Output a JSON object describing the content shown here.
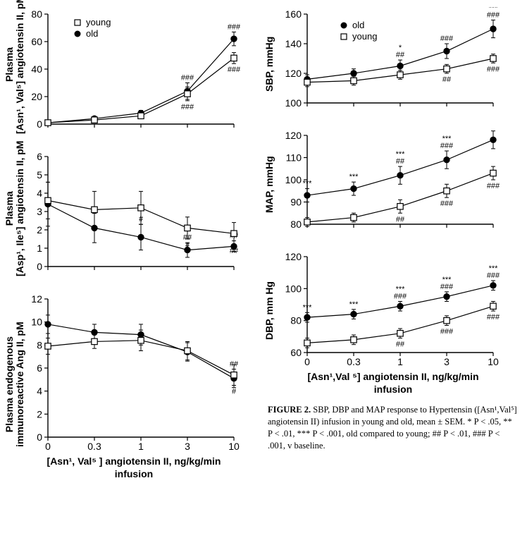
{
  "colors": {
    "bg": "#ffffff",
    "ink": "#000000",
    "series_old_fill": "#000000",
    "series_young_fill": "#ffffff",
    "series_stroke": "#000000",
    "axis": "#000000"
  },
  "marker": {
    "old": "circle-filled",
    "young": "square-open",
    "size": 4.2
  },
  "line_width": 1.2,
  "legend": {
    "left_panel": [
      {
        "key": "young",
        "label": "young"
      },
      {
        "key": "old",
        "label": "old"
      }
    ],
    "right_panel": [
      {
        "key": "old",
        "label": "old"
      },
      {
        "key": "young",
        "label": "young"
      }
    ]
  },
  "xlabels": {
    "left": "[Asn¹, Val⁵ ] angiotensin II, ng/kg/min\ninfusion",
    "right": "[Asn¹,Val ⁵] angiotensin II, ng/kg/min\ninfusion"
  },
  "xticks": [
    "0",
    "0.3",
    "1",
    "3",
    "10"
  ],
  "left_panels": [
    {
      "id": "L1",
      "ylabel_line1": "Plasma",
      "ylabel_line2": "[Asn¹, Val⁵] angiotensin II, pM",
      "ylim": [
        0,
        80
      ],
      "ytick_step": 20,
      "series": {
        "old": {
          "y": [
            1,
            4,
            8,
            24,
            62
          ],
          "err": [
            0.5,
            1,
            2,
            6,
            5
          ]
        },
        "young": {
          "y": [
            1,
            3,
            6,
            22,
            48
          ],
          "err": [
            0.5,
            1,
            2,
            5,
            4
          ]
        }
      },
      "sig": {
        "old": [
          "",
          "",
          "",
          "###",
          "###"
        ],
        "young": [
          "",
          "",
          "",
          "###",
          "###"
        ]
      }
    },
    {
      "id": "L2",
      "ylabel_line1": "Plasma",
      "ylabel_line2": "[Asp¹, Ile⁵] angiotensin II, pM",
      "ylim": [
        0,
        6
      ],
      "ytick_step": 1,
      "series": {
        "old": {
          "y": [
            3.4,
            2.1,
            1.6,
            0.9,
            1.1
          ],
          "err": [
            1.2,
            0.8,
            0.7,
            0.4,
            0.3
          ]
        },
        "young": {
          "y": [
            3.6,
            3.1,
            3.2,
            2.1,
            1.8
          ],
          "err": [
            1.0,
            1.0,
            0.9,
            0.6,
            0.6
          ]
        }
      },
      "sig": {
        "old": [
          "",
          "",
          "#",
          "##",
          "##"
        ],
        "young": [
          "",
          "",
          "",
          "#",
          "##"
        ]
      }
    },
    {
      "id": "L3",
      "ylabel_line1": "Plasma endogenous",
      "ylabel_line2": "immunoreactive Ang II, pM",
      "ylim": [
        0,
        12
      ],
      "ytick_step": 2,
      "series": {
        "old": {
          "y": [
            9.8,
            9.1,
            8.9,
            7.4,
            5.1
          ],
          "err": [
            0.8,
            0.7,
            0.9,
            0.8,
            0.8
          ]
        },
        "young": {
          "y": [
            7.9,
            8.3,
            8.4,
            7.5,
            5.4
          ],
          "err": [
            0.7,
            0.6,
            0.9,
            0.8,
            0.9
          ]
        }
      },
      "sig": {
        "old": [
          "",
          "",
          "",
          "",
          "##"
        ],
        "young": [
          "",
          "",
          "",
          "",
          "#"
        ]
      }
    }
  ],
  "right_panels": [
    {
      "id": "R1",
      "ylabel": "SBP, mmHg",
      "ylim": [
        100,
        160
      ],
      "ytick_step": 20,
      "series": {
        "old": {
          "y": [
            116,
            120,
            125,
            135,
            150
          ],
          "err": [
            3,
            3,
            4,
            5,
            6
          ]
        },
        "young": {
          "y": [
            114,
            115,
            119,
            123,
            130
          ],
          "err": [
            3,
            3,
            3,
            3,
            3
          ]
        }
      },
      "sig": {
        "old": [
          "",
          "",
          "## *",
          "###",
          "### ***"
        ],
        "young": [
          "",
          "",
          "",
          "##",
          "###"
        ]
      }
    },
    {
      "id": "R2",
      "ylabel": "MAP, mmHg",
      "ylim": [
        80,
        120
      ],
      "ytick_step": 10,
      "series": {
        "old": {
          "y": [
            93,
            96,
            102,
            109,
            118
          ],
          "err": [
            3,
            3,
            4,
            4,
            4
          ]
        },
        "young": {
          "y": [
            81,
            83,
            88,
            95,
            103
          ],
          "err": [
            2,
            2,
            3,
            3,
            3
          ]
        }
      },
      "sig": {
        "old": [
          "***",
          "***",
          "## ***",
          "### ***",
          "### ***"
        ],
        "young": [
          "",
          "",
          "##",
          "###",
          "###"
        ]
      }
    },
    {
      "id": "R3",
      "ylabel": "DBP, mm Hg",
      "ylim": [
        60,
        120
      ],
      "ytick_step": 20,
      "series": {
        "old": {
          "y": [
            82,
            84,
            89,
            95,
            102
          ],
          "err": [
            3,
            3,
            3,
            3,
            3
          ]
        },
        "young": {
          "y": [
            66,
            68,
            72,
            80,
            89
          ],
          "err": [
            3,
            3,
            3,
            3,
            3
          ]
        }
      },
      "sig": {
        "old": [
          "***",
          "***",
          "### ***",
          "### ***",
          "### ***"
        ],
        "young": [
          "",
          "",
          "##",
          "###",
          "###"
        ]
      }
    }
  ],
  "caption": {
    "lead": "FIGURE 2.",
    "body": " SBP, DBP and MAP response to Hypertensin ([Asn¹,Val⁵] angiotensin II) infusion in young and old, mean ± SEM. * P < .05, ** P < .01, *** P < .001, old compared to young; ## P < .01, ### P < .001, v baseline."
  }
}
